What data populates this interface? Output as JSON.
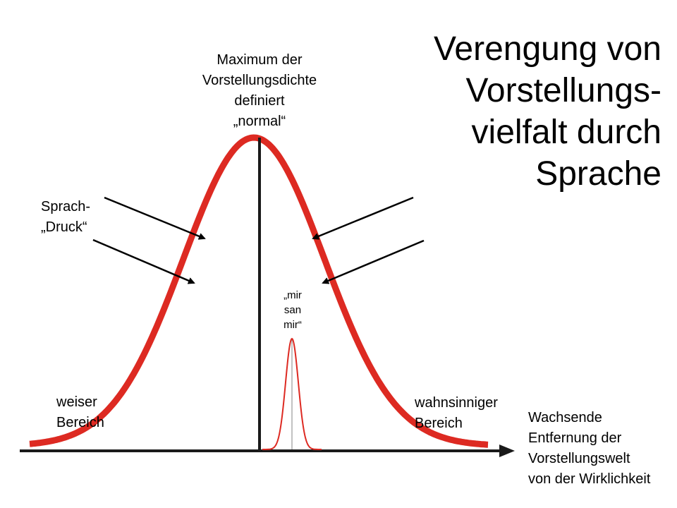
{
  "title": "Verengung von\nVorstellungs-\nvielfalt durch\nSprache",
  "labels": {
    "maximum": "Maximum der\nVorstellungsdichte\ndefiniert\n„normal“",
    "sprach_druck": "Sprach-\n„Druck“",
    "mir_san_mir": "„mir\nsan\nmir“",
    "weiser_bereich": "weiser\nBereich",
    "wahnsinniger_bereich": "wahnsinniger\nBereich",
    "axis_label": "Wachsende\nEntfernung der\nVorstellungswelt\nvon der Wirklichkeit"
  },
  "colors": {
    "curve": "#dd2a22",
    "axis": "#1a1a1a",
    "arrows": "#000000",
    "text": "#000000"
  },
  "curves": {
    "main": {
      "name": "broad distribution",
      "peak": "normal"
    },
    "narrow": {
      "name": "narrow distribution"
    }
  }
}
